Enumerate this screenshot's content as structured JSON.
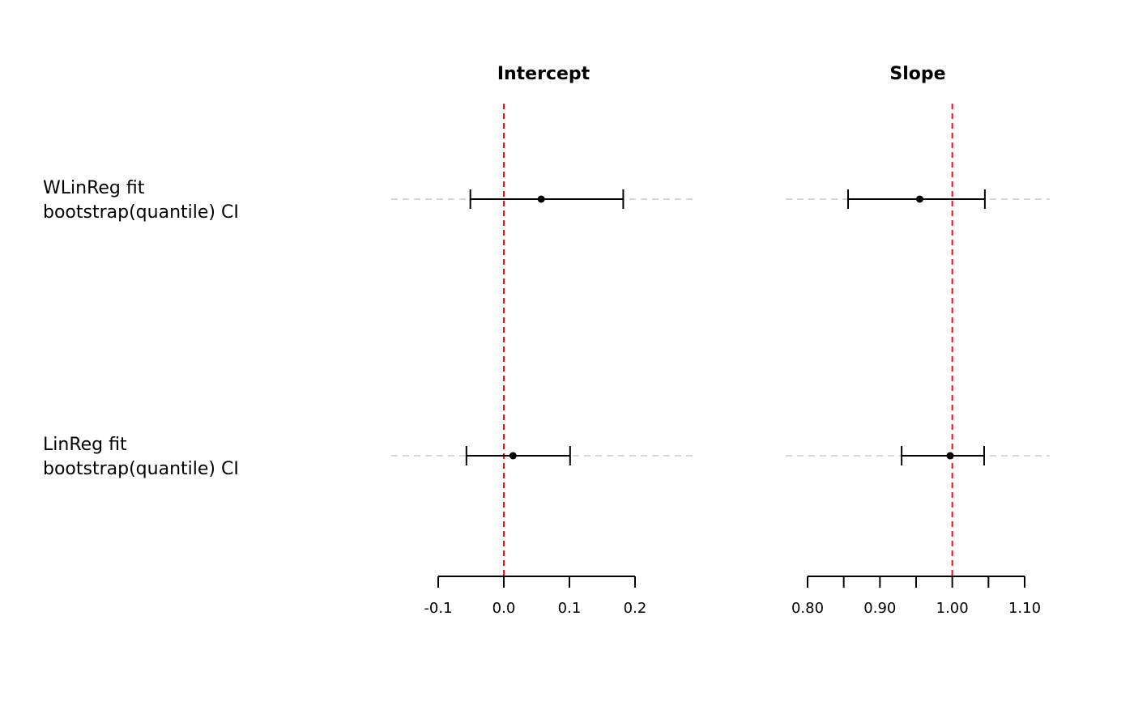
{
  "chart_data": {
    "type": "forest",
    "rows": [
      {
        "label_lines": [
          "WLinReg fit",
          "bootstrap(quantile) CI"
        ]
      },
      {
        "label_lines": [
          "LinReg fit",
          "bootstrap(quantile) CI"
        ]
      }
    ],
    "panels": [
      {
        "title": "Intercept",
        "xlim": [
          -0.2,
          0.3
        ],
        "ticks": [
          -0.1,
          0.0,
          0.1,
          0.2
        ],
        "tick_labels": [
          "-0.1",
          "0.0",
          "0.1",
          "0.2"
        ],
        "reference": 0.0,
        "estimates": [
          {
            "row": 0,
            "estimate": 0.057,
            "lower": -0.051,
            "upper": 0.182
          },
          {
            "row": 1,
            "estimate": 0.014,
            "lower": -0.057,
            "upper": 0.101
          }
        ]
      },
      {
        "title": "Slope",
        "xlim": [
          0.74,
          1.14
        ],
        "ticks": [
          0.8,
          0.85,
          0.9,
          0.95,
          1.0,
          1.05,
          1.1
        ],
        "tick_labels": [
          "0.80",
          "",
          "0.90",
          "",
          "1.00",
          "",
          "1.10"
        ],
        "reference": 1.0,
        "estimates": [
          {
            "row": 0,
            "estimate": 0.955,
            "lower": 0.856,
            "upper": 1.045
          },
          {
            "row": 1,
            "estimate": 0.997,
            "lower": 0.93,
            "upper": 1.044
          }
        ]
      }
    ],
    "colors": {
      "reference_line": "#e8141b",
      "guide_line": "#cccccc",
      "interval": "#000000",
      "point": "#000000"
    }
  }
}
